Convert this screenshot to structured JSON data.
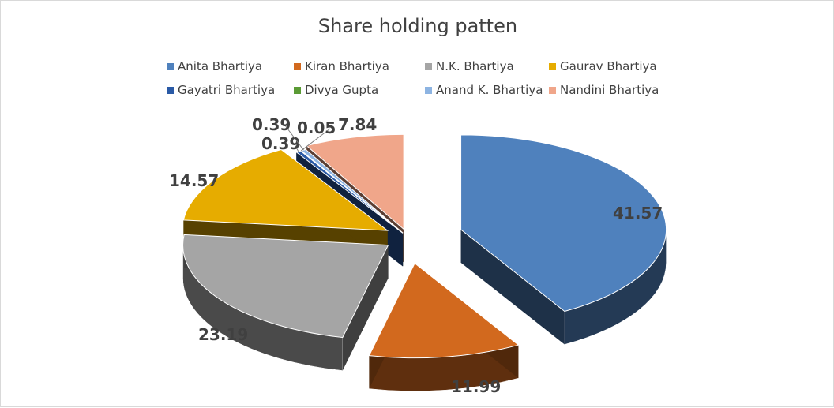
{
  "chart_data": {
    "type": "pie",
    "title": "Share holding patten",
    "legend_position": "top",
    "categories": [
      "Anita Bhartiya",
      "Kiran Bhartiya",
      "N.K. Bhartiya",
      "Gaurav Bhartiya",
      "Gayatri Bhartiya",
      "Divya Gupta",
      "Anand K. Bhartiya",
      "Nandini Bhartiya"
    ],
    "values": [
      41.57,
      11.99,
      23.19,
      14.57,
      0.39,
      0.05,
      0.39,
      7.84
    ],
    "value_labels": [
      "41.57",
      "11.99",
      "23.19",
      "14.57",
      "0.39",
      "0.05",
      "0.39",
      "7.84"
    ],
    "colors": [
      "#4f81bd",
      "#d2691e",
      "#a5a5a5",
      "#e6ac00",
      "#2a5aa6",
      "#5b9b35",
      "#8db4e2",
      "#f0a68a"
    ],
    "style": "3d-exploded"
  }
}
